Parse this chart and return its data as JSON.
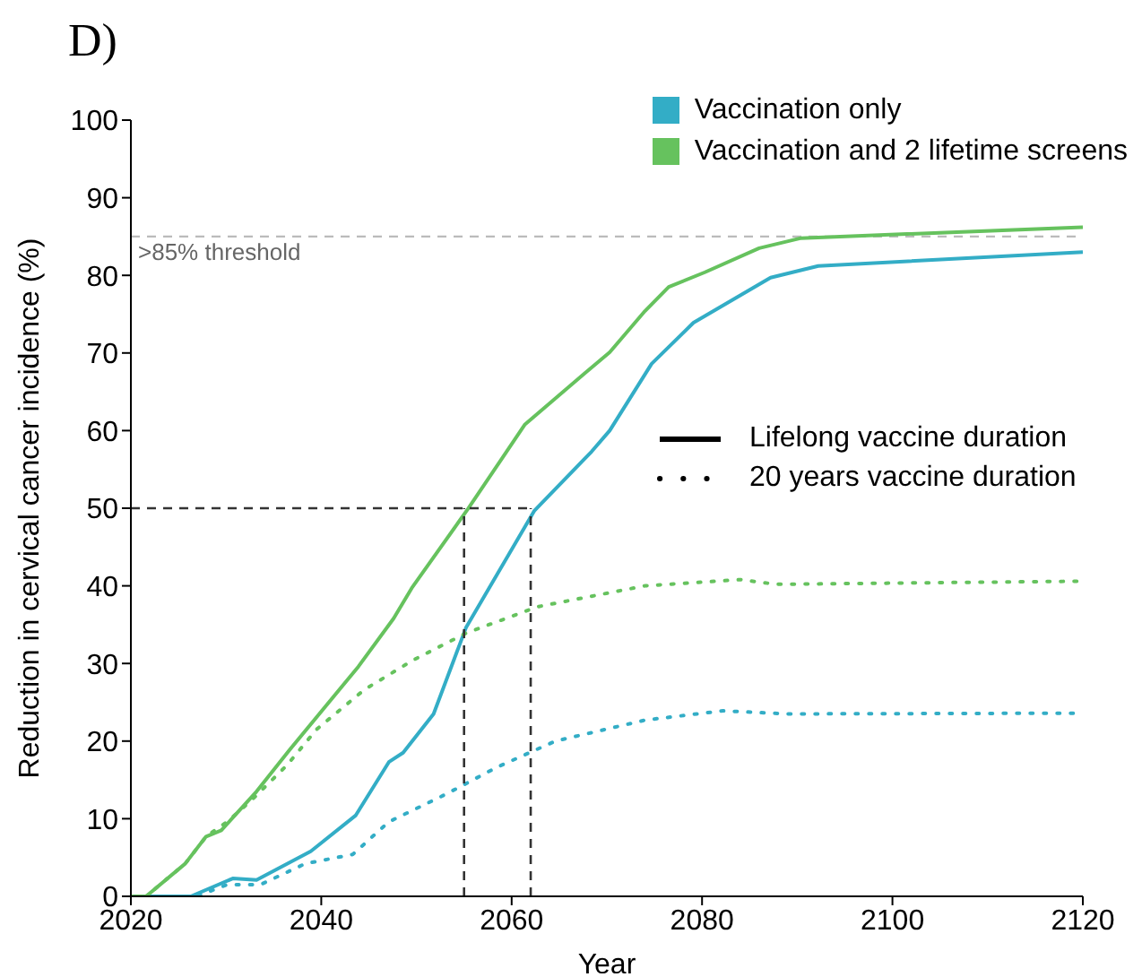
{
  "chart_data": {
    "type": "line",
    "title": "D)",
    "xlabel": "Year",
    "ylabel": "Reduction in cervical cancer incidence (%)",
    "xlim": [
      2020,
      2120
    ],
    "xticks": [
      2020,
      2040,
      2060,
      2080,
      2100,
      2120
    ],
    "ylim": [
      0,
      100
    ],
    "yticks": [
      0,
      10,
      20,
      30,
      40,
      50,
      60,
      70,
      80,
      90,
      100
    ],
    "legend": "top right",
    "annotations": [
      "Lifelong vaccine duration",
      "20 years vaccine duration"
    ],
    "ref_lines": [
      {
        "axis": "y",
        "value": 85,
        "label": ">85% threshold",
        "color": "#bbbbbb",
        "line_style": "dashed"
      }
    ],
    "series": [
      {
        "name": "Vaccination only",
        "color": "#33adc6",
        "line_style": "solid",
        "x": [
          2020,
          2026.3,
          2030.7,
          2033.2,
          2038.9,
          2043.6,
          2047.1,
          2048.6,
          2051.8,
          2055.2,
          2062.4,
          2068.4,
          2070.3,
          2074.7,
          2079.1,
          2087.2,
          2092.2,
          2120
        ],
        "values": [
          0,
          0,
          2.3,
          2.1,
          5.8,
          10.4,
          17.3,
          18.5,
          23.5,
          34.6,
          49.7,
          57.3,
          60,
          68.6,
          73.9,
          79.7,
          81.2,
          83
        ]
      },
      {
        "name": "Vaccination and 2 lifetime screens",
        "color": "#66c25e",
        "line_style": "solid",
        "x": [
          2020,
          2021.6,
          2025.7,
          2027.9,
          2029.5,
          2033.2,
          2036.7,
          2043.9,
          2047.6,
          2049.5,
          2055.4,
          2061.4,
          2067.7,
          2070.3,
          2074,
          2076.5,
          2080.3,
          2086,
          2090.4,
          2120
        ],
        "values": [
          0,
          0,
          4.2,
          7.7,
          8.5,
          13.5,
          18.9,
          29.6,
          35.8,
          39.7,
          49.9,
          60.8,
          67.4,
          70.1,
          75.4,
          78.5,
          80.4,
          83.5,
          84.8,
          86.2
        ]
      },
      {
        "color": "#33adc6",
        "line_style": "dotted",
        "x": [
          2020,
          2026.9,
          2030.1,
          2033.6,
          2038.3,
          2043.3,
          2047.1,
          2053,
          2058.4,
          2064.6,
          2074,
          2082.2,
          2089.1,
          2120
        ],
        "values": [
          0,
          0,
          1.5,
          1.5,
          4.2,
          5.4,
          9.6,
          13.1,
          16.6,
          20,
          22.7,
          23.9,
          23.5,
          23.6
        ]
      },
      {
        "color": "#66c25e",
        "line_style": "dotted",
        "x": [
          2020,
          2021.6,
          2025.7,
          2027.9,
          2030.1,
          2032.6,
          2036.4,
          2039.5,
          2044.5,
          2049.6,
          2055.2,
          2062.7,
          2074,
          2084,
          2087.8,
          2120
        ],
        "values": [
          0,
          0,
          4.2,
          7.7,
          9.6,
          12.3,
          16.9,
          21.5,
          26.6,
          30.4,
          33.9,
          37.3,
          40,
          40.8,
          40.2,
          40.6
        ]
      },
      {
        "type": "line",
        "color": "#333333",
        "line_style": "dashed",
        "x": [
          2020,
          2062
        ],
        "values": [
          50,
          50
        ]
      },
      {
        "type": "line",
        "color": "#333333",
        "line_style": "dashed",
        "x": [
          2055,
          2055
        ],
        "values": [
          0,
          50
        ]
      },
      {
        "type": "line",
        "color": "#333333",
        "line_style": "dashed",
        "x": [
          2062,
          2062
        ],
        "values": [
          0,
          50
        ]
      }
    ]
  }
}
